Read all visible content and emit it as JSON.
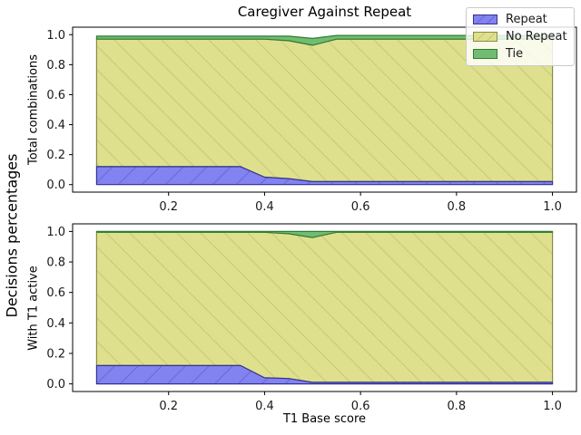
{
  "title": "Caregiver Against Repeat",
  "figure_ylabel": "Decisions percentages",
  "legend": {
    "items": [
      {
        "label": "Repeat",
        "key": "repeat"
      },
      {
        "label": "No Repeat",
        "key": "no_repeat"
      },
      {
        "label": "Tie",
        "key": "tie"
      }
    ]
  },
  "styles": {
    "repeat": {
      "fill": "#8282f0",
      "edge": "#32328f",
      "hatch": "#6868d8",
      "hatch_dir": "/"
    },
    "no_repeat": {
      "fill": "#dfe08d",
      "edge": "#8a8b42",
      "hatch": "#c6c878",
      "hatch_dir": "\\"
    },
    "tie": {
      "fill": "#72bc72",
      "edge": "#2f7d33",
      "hatch": null,
      "hatch_dir": "\\"
    }
  },
  "chart_data": [
    {
      "type": "area",
      "stacked": true,
      "ylabel": "Total combinations",
      "xlabel": "",
      "xlim": [
        0.0,
        1.05
      ],
      "ylim": [
        -0.05,
        1.05
      ],
      "xticks": [
        0.2,
        0.4,
        0.6,
        0.8,
        1.0
      ],
      "yticks": [
        0.0,
        0.2,
        0.4,
        0.6,
        0.8,
        1.0
      ],
      "x": [
        0.05,
        0.1,
        0.15,
        0.2,
        0.25,
        0.3,
        0.35,
        0.4,
        0.45,
        0.5,
        0.55,
        0.6,
        0.65,
        0.7,
        0.75,
        0.8,
        0.85,
        0.9,
        0.95,
        1.0
      ],
      "series": [
        {
          "name": "Repeat",
          "key": "repeat",
          "values": [
            0.12,
            0.12,
            0.12,
            0.12,
            0.12,
            0.12,
            0.12,
            0.05,
            0.04,
            0.02,
            0.02,
            0.02,
            0.02,
            0.02,
            0.02,
            0.02,
            0.02,
            0.02,
            0.02,
            0.02
          ]
        },
        {
          "name": "No Repeat",
          "key": "no_repeat",
          "values": [
            0.85,
            0.85,
            0.85,
            0.85,
            0.85,
            0.85,
            0.85,
            0.92,
            0.92,
            0.91,
            0.95,
            0.95,
            0.95,
            0.95,
            0.95,
            0.95,
            0.95,
            0.95,
            0.95,
            0.95
          ]
        },
        {
          "name": "Tie",
          "key": "tie",
          "values": [
            0.02,
            0.02,
            0.02,
            0.02,
            0.02,
            0.02,
            0.02,
            0.02,
            0.03,
            0.045,
            0.025,
            0.025,
            0.025,
            0.025,
            0.025,
            0.025,
            0.025,
            0.025,
            0.025,
            0.025
          ]
        }
      ]
    },
    {
      "type": "area",
      "stacked": true,
      "ylabel": "With T1 active",
      "xlabel": "T1 Base score",
      "xlim": [
        0.0,
        1.05
      ],
      "ylim": [
        -0.05,
        1.05
      ],
      "xticks": [
        0.2,
        0.4,
        0.6,
        0.8,
        1.0
      ],
      "yticks": [
        0.0,
        0.2,
        0.4,
        0.6,
        0.8,
        1.0
      ],
      "x": [
        0.05,
        0.1,
        0.15,
        0.2,
        0.25,
        0.3,
        0.35,
        0.4,
        0.45,
        0.5,
        0.55,
        0.6,
        0.65,
        0.7,
        0.75,
        0.8,
        0.85,
        0.9,
        0.95,
        1.0
      ],
      "series": [
        {
          "name": "Repeat",
          "key": "repeat",
          "values": [
            0.12,
            0.12,
            0.12,
            0.12,
            0.12,
            0.12,
            0.12,
            0.04,
            0.035,
            0.01,
            0.01,
            0.01,
            0.01,
            0.01,
            0.01,
            0.01,
            0.01,
            0.01,
            0.01,
            0.01
          ]
        },
        {
          "name": "No Repeat",
          "key": "no_repeat",
          "values": [
            0.875,
            0.875,
            0.875,
            0.875,
            0.875,
            0.875,
            0.875,
            0.955,
            0.95,
            0.95,
            0.985,
            0.985,
            0.985,
            0.985,
            0.985,
            0.985,
            0.985,
            0.985,
            0.985,
            0.985
          ]
        },
        {
          "name": "Tie",
          "key": "tie",
          "values": [
            0.005,
            0.005,
            0.005,
            0.005,
            0.005,
            0.005,
            0.005,
            0.005,
            0.015,
            0.04,
            0.005,
            0.005,
            0.005,
            0.005,
            0.005,
            0.005,
            0.005,
            0.005,
            0.005,
            0.005
          ]
        }
      ]
    }
  ]
}
